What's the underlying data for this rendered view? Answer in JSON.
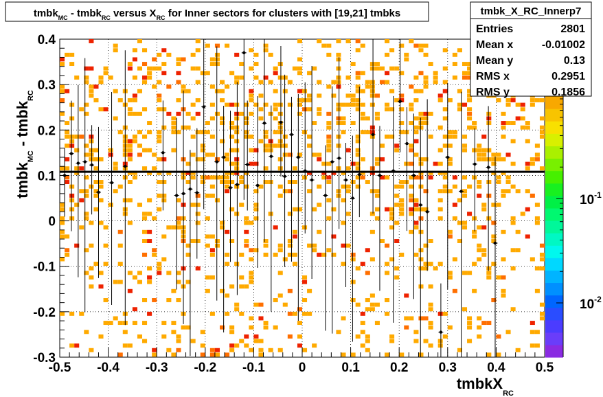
{
  "chart_data": {
    "type": "heatmap",
    "title": {
      "parts": [
        {
          "text": "tmbk",
          "sub": false
        },
        {
          "text": "MC",
          "sub": true
        },
        {
          "text": " - tmbk",
          "sub": false
        },
        {
          "text": "RC",
          "sub": true
        },
        {
          "text": " versus X",
          "sub": false
        },
        {
          "text": "RC",
          "sub": true
        },
        {
          "text": " for Inner sectors for clusters with [19,21] tmbks",
          "sub": false
        }
      ]
    },
    "xlabel": {
      "main": "tmbkX",
      "sub": "RC"
    },
    "ylabel": {
      "parts": [
        {
          "text": "tmbk",
          "sub": false
        },
        {
          "text": "MC",
          "sub": true
        },
        {
          "text": " - tmbk",
          "sub": false
        },
        {
          "text": "RC",
          "sub": true
        }
      ]
    },
    "xlim": [
      -0.5,
      0.5
    ],
    "ylim": [
      -0.3,
      0.4
    ],
    "x_ticks": [
      "-0.5",
      "-0.4",
      "-0.3",
      "-0.2",
      "-0.1",
      "0",
      "0.1",
      "0.2",
      "0.3",
      "0.4",
      "0.5"
    ],
    "y_ticks": [
      "-0.3",
      "-0.2",
      "-0.1",
      "0",
      "0.1",
      "0.2",
      "0.3",
      "0.4"
    ],
    "grid": true,
    "colorbar": {
      "scale": "log",
      "labels": [
        {
          "base": "10",
          "exp": "-1",
          "value": 0.1
        },
        {
          "base": "10",
          "exp": "-2",
          "value": 0.01
        }
      ]
    },
    "fit_line": {
      "y": 0.108
    },
    "profile_points": [
      {
        "x": -0.49,
        "y": 0.1
      },
      {
        "x": -0.476,
        "y": 0.148
      },
      {
        "x": -0.462,
        "y": 0.127
      },
      {
        "x": -0.448,
        "y": 0.13
      },
      {
        "x": -0.434,
        "y": 0.123
      },
      {
        "x": -0.42,
        "y": 0.063
      },
      {
        "x": -0.393,
        "y": 0.084
      },
      {
        "x": -0.365,
        "y": 0.12
      },
      {
        "x": -0.287,
        "y": 0.15
      },
      {
        "x": -0.259,
        "y": 0.056
      },
      {
        "x": -0.245,
        "y": 0.06
      },
      {
        "x": -0.231,
        "y": 0.07
      },
      {
        "x": -0.217,
        "y": 0.062
      },
      {
        "x": -0.203,
        "y": 0.251
      },
      {
        "x": -0.176,
        "y": 0.13
      },
      {
        "x": -0.162,
        "y": 0.14
      },
      {
        "x": -0.148,
        "y": 0.073
      },
      {
        "x": -0.134,
        "y": 0.08
      },
      {
        "x": -0.12,
        "y": 0.37
      },
      {
        "x": -0.113,
        "y": 0.124
      },
      {
        "x": -0.092,
        "y": 0.078
      },
      {
        "x": -0.078,
        "y": 0.215
      },
      {
        "x": -0.064,
        "y": 0.142
      },
      {
        "x": -0.044,
        "y": 0.217
      },
      {
        "x": -0.036,
        "y": 0.098
      },
      {
        "x": -0.022,
        "y": 0.19
      },
      {
        "x": -0.008,
        "y": 0.14
      },
      {
        "x": 0.006,
        "y": 0.11
      },
      {
        "x": 0.02,
        "y": 0.09
      },
      {
        "x": 0.048,
        "y": 0.056
      },
      {
        "x": 0.062,
        "y": 0.13
      },
      {
        "x": 0.076,
        "y": 0.138
      },
      {
        "x": 0.09,
        "y": 0.09
      },
      {
        "x": 0.104,
        "y": 0.05
      },
      {
        "x": 0.118,
        "y": 0.102
      },
      {
        "x": 0.146,
        "y": 0.19
      },
      {
        "x": 0.16,
        "y": 0.1
      },
      {
        "x": 0.188,
        "y": 0.11
      },
      {
        "x": 0.202,
        "y": 0.263
      },
      {
        "x": 0.216,
        "y": 0.17
      },
      {
        "x": 0.23,
        "y": 0.1
      },
      {
        "x": 0.244,
        "y": 0.035
      },
      {
        "x": 0.258,
        "y": 0.02
      },
      {
        "x": 0.286,
        "y": -0.245
      },
      {
        "x": 0.3,
        "y": 0.14
      },
      {
        "x": 0.328,
        "y": 0.065
      },
      {
        "x": 0.356,
        "y": 0.125
      },
      {
        "x": 0.384,
        "y": 0.118
      },
      {
        "x": 0.398,
        "y": -0.049
      }
    ],
    "statbox": {
      "title": "tmbk_X_RC_Innerp7",
      "rows": [
        {
          "label": "Entries",
          "value": "2801"
        },
        {
          "label": "Mean x",
          "value": "-0.01002"
        },
        {
          "label": "Mean y",
          "value": "0.13"
        },
        {
          "label": "RMS x",
          "value": "0.2951"
        },
        {
          "label": "RMS y",
          "value": "0.1856"
        }
      ]
    },
    "colors": {
      "cell_low": "#ffaa00",
      "cell_mid": "#ff6f00",
      "cell_high": "#ee2200",
      "fit_line": "#000000"
    }
  }
}
